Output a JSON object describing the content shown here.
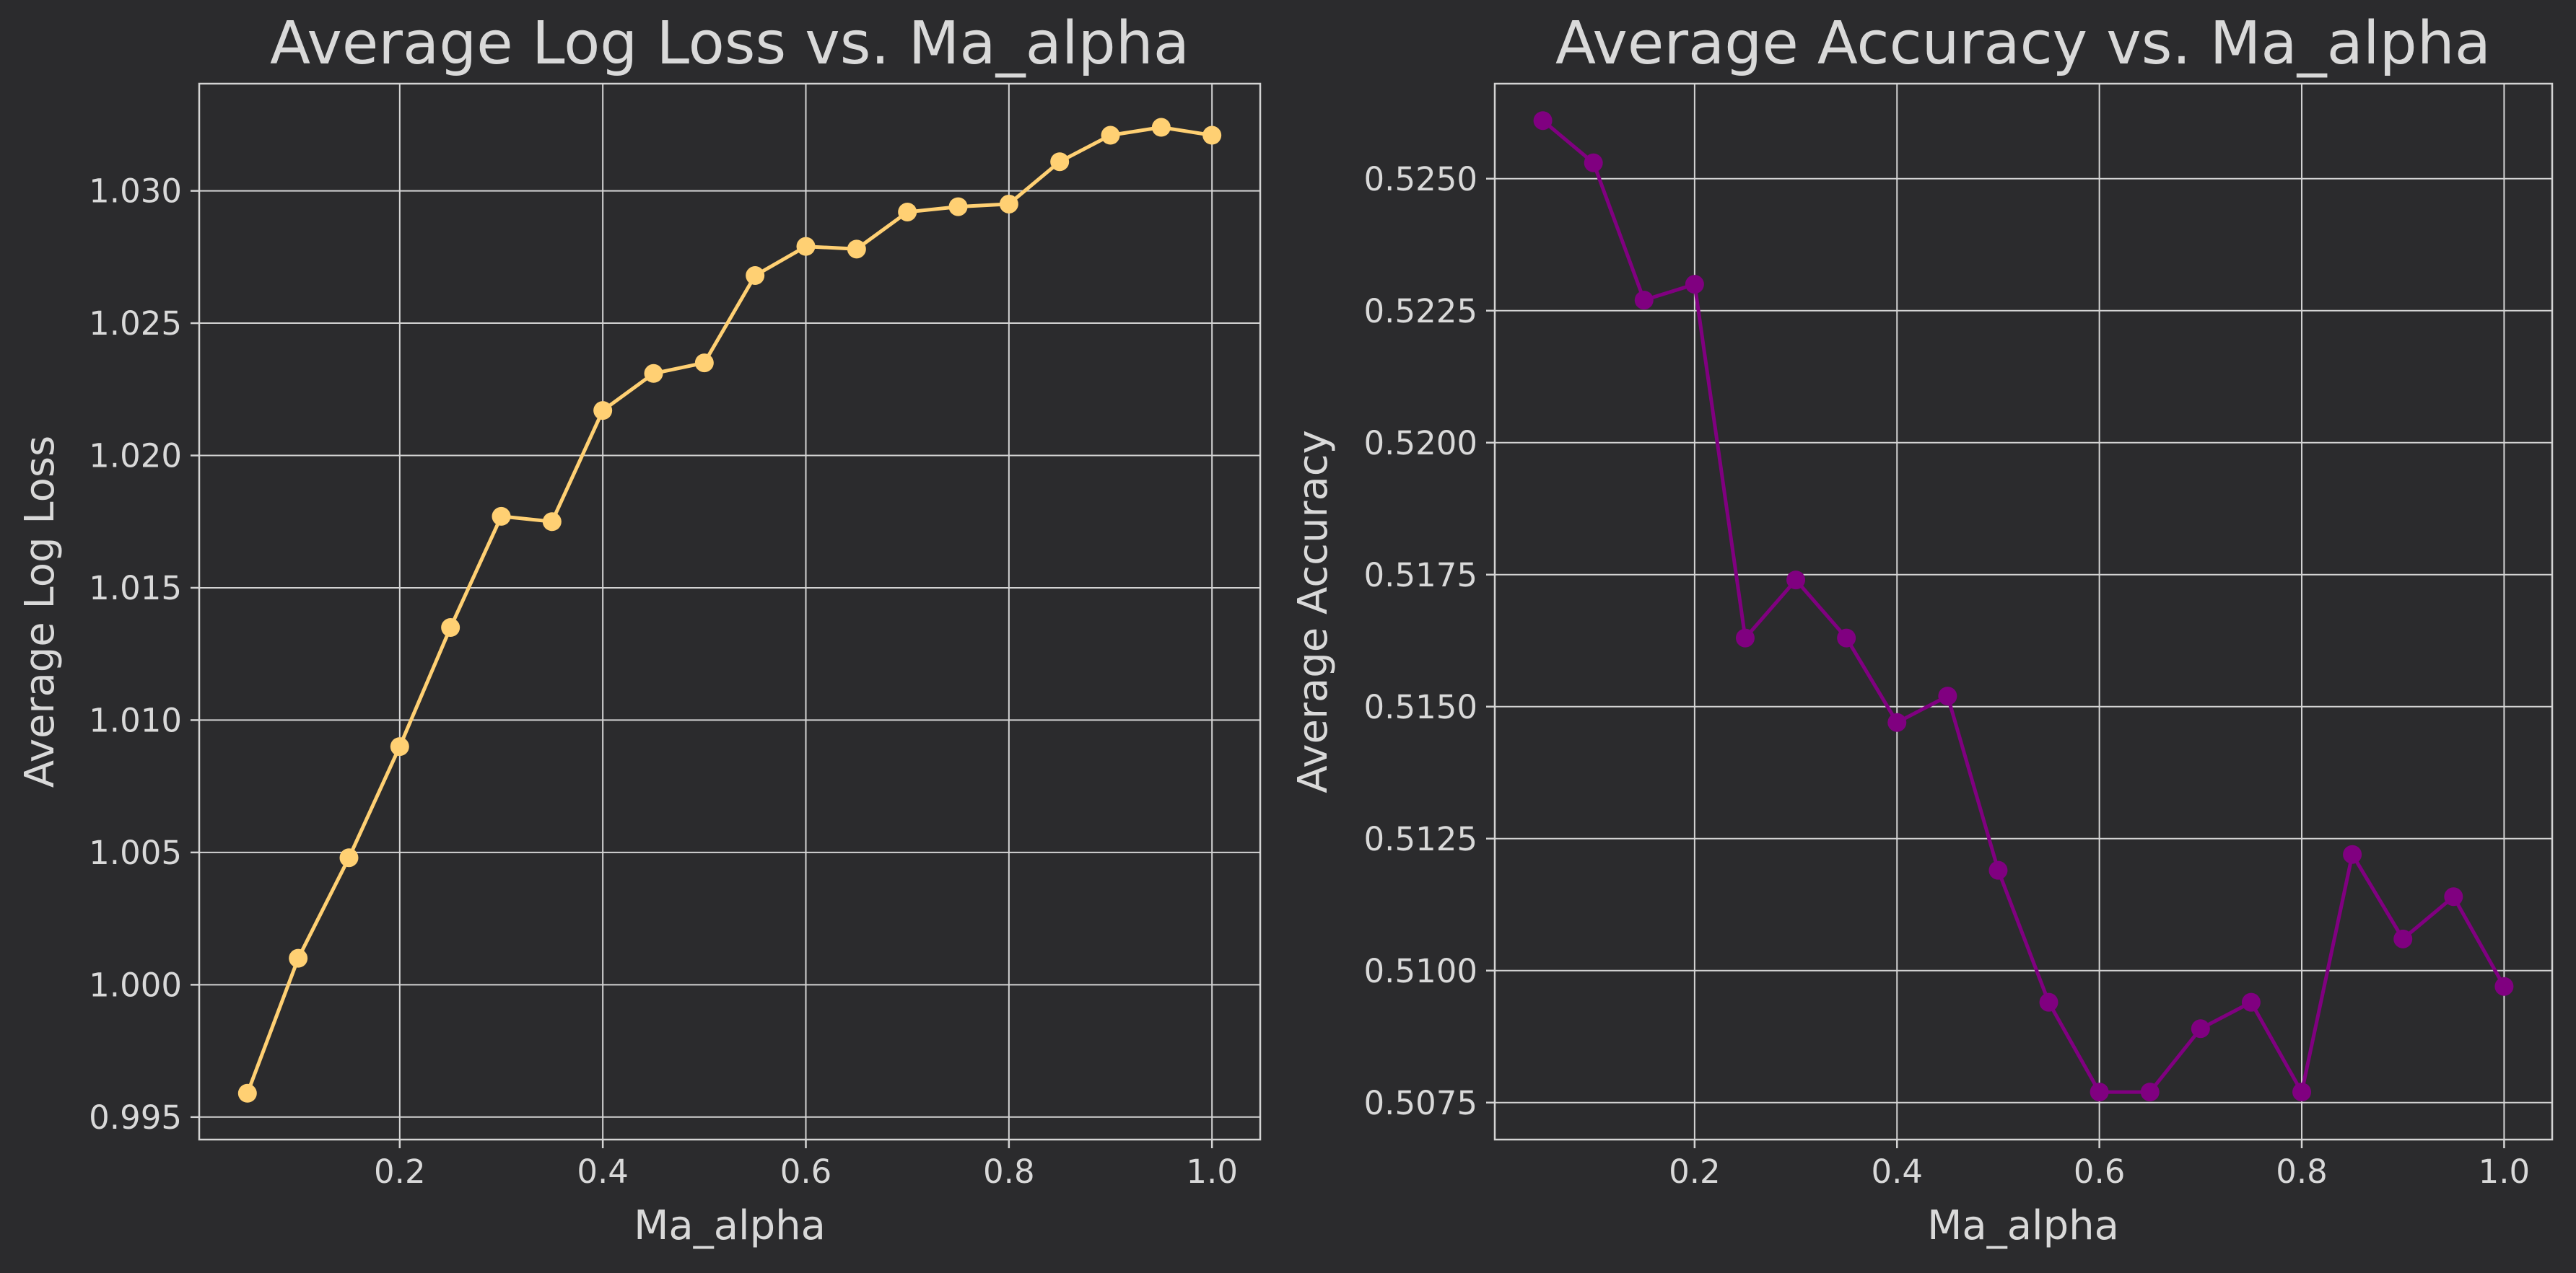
{
  "colors": {
    "background": "#2b2b2d",
    "text": "#d9d9d9",
    "grid": "#d4d4d4"
  },
  "chart_data": [
    {
      "type": "line",
      "title": "Average Log Loss vs. Ma_alpha",
      "xlabel": "Ma_alpha",
      "ylabel": "Average Log Loss",
      "xlim": [
        0.0025,
        1.0475
      ],
      "ylim": [
        0.99415,
        1.03405
      ],
      "xticks": [
        0.2,
        0.4,
        0.6,
        0.8,
        1.0
      ],
      "xtick_labels": [
        "0.2",
        "0.4",
        "0.6",
        "0.8",
        "1.0"
      ],
      "yticks": [
        0.995,
        1.0,
        1.005,
        1.01,
        1.015,
        1.02,
        1.025,
        1.03
      ],
      "ytick_labels": [
        "0.995",
        "1.000",
        "1.005",
        "1.010",
        "1.015",
        "1.020",
        "1.025",
        "1.030"
      ],
      "grid": true,
      "color": "#ffd073",
      "x": [
        0.05,
        0.1,
        0.15,
        0.2,
        0.25,
        0.3,
        0.35,
        0.4,
        0.45,
        0.5,
        0.55,
        0.6,
        0.65,
        0.7,
        0.75,
        0.8,
        0.85,
        0.9,
        0.95,
        1.0
      ],
      "y": [
        0.9959,
        1.001,
        1.0048,
        1.009,
        1.0135,
        1.0177,
        1.0175,
        1.0217,
        1.0231,
        1.0235,
        1.0268,
        1.0279,
        1.0278,
        1.0292,
        1.0294,
        1.0295,
        1.0311,
        1.0321,
        1.0324,
        1.0321
      ]
    },
    {
      "type": "line",
      "title": "Average Accuracy vs. Ma_alpha",
      "xlabel": "Ma_alpha",
      "ylabel": "Average Accuracy",
      "xlim": [
        0.0025,
        1.0475
      ],
      "ylim": [
        0.5068,
        0.5268
      ],
      "xticks": [
        0.2,
        0.4,
        0.6,
        0.8,
        1.0
      ],
      "xtick_labels": [
        "0.2",
        "0.4",
        "0.6",
        "0.8",
        "1.0"
      ],
      "yticks": [
        0.5075,
        0.51,
        0.5125,
        0.515,
        0.5175,
        0.52,
        0.5225,
        0.525
      ],
      "ytick_labels": [
        "0.5075",
        "0.5100",
        "0.5125",
        "0.5150",
        "0.5175",
        "0.5200",
        "0.5225",
        "0.5250"
      ],
      "grid": true,
      "color": "#800080",
      "x": [
        0.05,
        0.1,
        0.15,
        0.2,
        0.25,
        0.3,
        0.35,
        0.4,
        0.45,
        0.5,
        0.55,
        0.6,
        0.65,
        0.7,
        0.75,
        0.8,
        0.85,
        0.9,
        0.95,
        1.0
      ],
      "y": [
        0.5261,
        0.5253,
        0.5227,
        0.523,
        0.5163,
        0.5174,
        0.5163,
        0.5147,
        0.5152,
        0.5119,
        0.5094,
        0.5077,
        0.5077,
        0.5089,
        0.5094,
        0.5077,
        0.5122,
        0.5106,
        0.5114,
        0.5097
      ]
    }
  ]
}
